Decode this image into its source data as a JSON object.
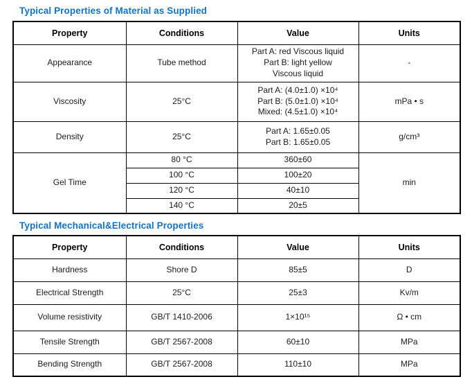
{
  "page": {
    "accent_blue": "#1273c4",
    "border_color": "#000000",
    "background": "#ffffff"
  },
  "section1": {
    "title": "Typical Properties of Material as Supplied",
    "headers": {
      "property": "Property",
      "conditions": "Conditions",
      "value": "Value",
      "units": "Units"
    },
    "appearance": {
      "property": "Appearance",
      "conditions": "Tube method",
      "value_lines": [
        "Part A: red Viscous liquid",
        "Part B: light yellow",
        "Viscous liquid"
      ],
      "units": "-"
    },
    "viscosity": {
      "property": "Viscosity",
      "conditions": "25°C",
      "value_lines": [
        "Part A: (4.0±1.0) ×10⁴",
        "Part B: (5.0±1.0) ×10⁴",
        "Mixed: (4.5±1.0) ×10⁴"
      ],
      "units": "mPa • s"
    },
    "density": {
      "property": "Density",
      "conditions": "25°C",
      "value_lines": [
        "Part A: 1.65±0.05",
        "Part B: 1.65±0.05"
      ],
      "units": "g/cm³"
    },
    "gel_time": {
      "property": "Gel Time",
      "units": "min",
      "rows": [
        {
          "conditions": "80 °C",
          "value": "360±60"
        },
        {
          "conditions": "100 °C",
          "value": "100±20"
        },
        {
          "conditions": "120 °C",
          "value": "40±10"
        },
        {
          "conditions": "140 °C",
          "value": "20±5"
        }
      ]
    }
  },
  "section2": {
    "title": "Typical Mechanical&Electrical Properties",
    "headers": {
      "property": "Property",
      "conditions": "Conditions",
      "value": "Value",
      "units": "Units"
    },
    "rows": [
      {
        "property": "Hardness",
        "conditions": "Shore D",
        "value": "85±5",
        "units": "D"
      },
      {
        "property": "Electrical Strength",
        "conditions": "25°C",
        "value": "25±3",
        "units": "Kv/m"
      },
      {
        "property": "Volume resistivity",
        "conditions": "GB/T 1410-2006",
        "value": "1×10¹⁵",
        "units": "Ω • cm"
      },
      {
        "property": "Tensile Strength",
        "conditions": "GB/T 2567-2008",
        "value": "60±10",
        "units": "MPa"
      },
      {
        "property": "Bending Strength",
        "conditions": "GB/T 2567-2008",
        "value": "110±10",
        "units": "MPa"
      }
    ]
  }
}
